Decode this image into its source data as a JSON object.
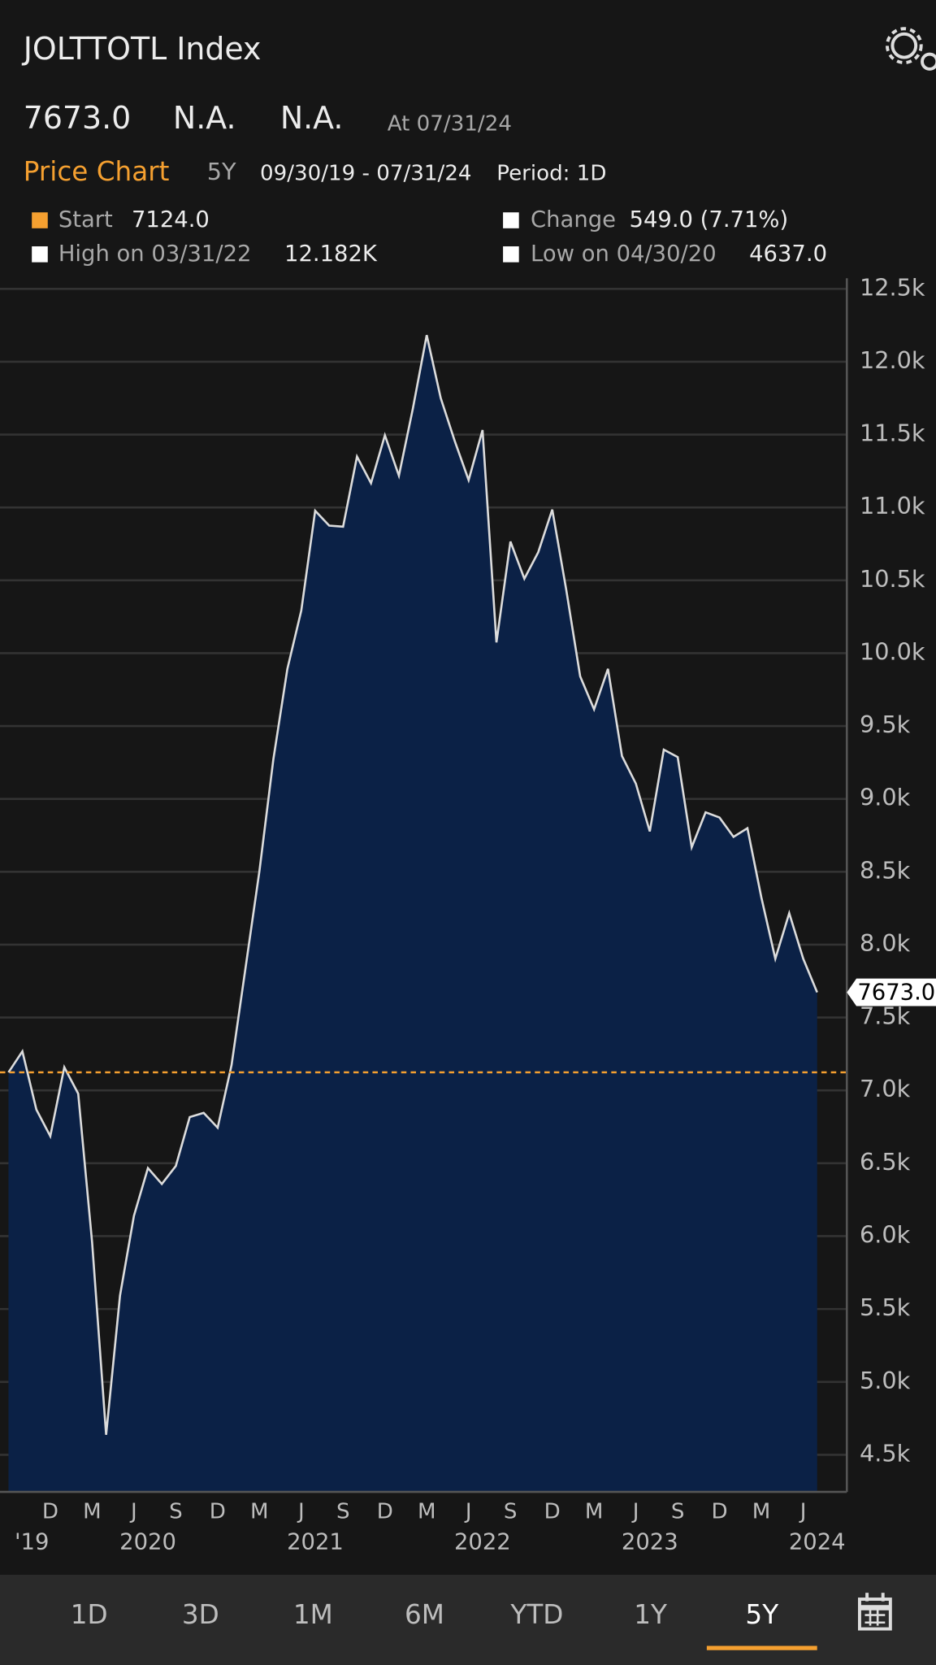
{
  "header": {
    "title": "JOLTTOTL Index",
    "last": "7673.0",
    "bid": "N.A.",
    "ask": "N.A.",
    "asof": "At 07/31/24",
    "section": "Price Chart",
    "range": "5Y",
    "dates": "09/30/19 - 07/31/24",
    "period": "Period: 1D",
    "stats": [
      {
        "label": "Start",
        "value": "7124.0"
      },
      {
        "label": "Change",
        "value": "549.0 (7.71%)"
      },
      {
        "label": "High on 03/31/22",
        "value": "12.182K"
      },
      {
        "label": "Low on 04/30/20",
        "value": "4637.0"
      }
    ]
  },
  "chart_data": {
    "type": "area",
    "color": "#dcdcdc",
    "fill": "#0b2146",
    "ref_color": "#f5a030",
    "grid": true,
    "x": [
      "2019-09",
      "2019-10",
      "2019-11",
      "2019-12",
      "2020-01",
      "2020-02",
      "2020-03",
      "2020-04",
      "2020-05",
      "2020-06",
      "2020-07",
      "2020-08",
      "2020-09",
      "2020-10",
      "2020-11",
      "2020-12",
      "2021-01",
      "2021-02",
      "2021-03",
      "2021-04",
      "2021-05",
      "2021-06",
      "2021-07",
      "2021-08",
      "2021-09",
      "2021-10",
      "2021-11",
      "2021-12",
      "2022-01",
      "2022-02",
      "2022-03",
      "2022-04",
      "2022-05",
      "2022-06",
      "2022-07",
      "2022-08",
      "2022-09",
      "2022-10",
      "2022-11",
      "2022-12",
      "2023-01",
      "2023-02",
      "2023-03",
      "2023-04",
      "2023-05",
      "2023-06",
      "2023-07",
      "2023-08",
      "2023-09",
      "2023-10",
      "2023-11",
      "2023-12",
      "2024-01",
      "2024-02",
      "2024-03",
      "2024-04",
      "2024-05",
      "2024-06",
      "2024-07"
    ],
    "values": [
      7124,
      7268,
      6868,
      6686,
      7159,
      6977,
      5957,
      4637,
      5593,
      6139,
      6467,
      6358,
      6482,
      6817,
      6846,
      6744,
      7174,
      7837,
      8507,
      9272,
      9892,
      10292,
      10977,
      10875,
      10868,
      11349,
      11167,
      11495,
      11218,
      11677,
      12182,
      11750,
      11458,
      11188,
      11531,
      10074,
      10766,
      10511,
      10693,
      10985,
      10438,
      9841,
      9615,
      9892,
      9294,
      9105,
      8777,
      9338,
      9287,
      8668,
      8908,
      8872,
      8740,
      8799,
      8325,
      7903,
      8216,
      7903,
      7673
    ],
    "ylim": [
      4245,
      12500
    ],
    "yticks": [
      {
        "value": 4500,
        "label": "4.5k"
      },
      {
        "value": 5000,
        "label": "5.0k"
      },
      {
        "value": 5500,
        "label": "5.5k"
      },
      {
        "value": 6000,
        "label": "6.0k"
      },
      {
        "value": 6500,
        "label": "6.5k"
      },
      {
        "value": 7000,
        "label": "7.0k"
      },
      {
        "value": 7500,
        "label": "7.5k"
      },
      {
        "value": 8000,
        "label": "8.0k"
      },
      {
        "value": 8500,
        "label": "8.5k"
      },
      {
        "value": 9000,
        "label": "9.0k"
      },
      {
        "value": 9500,
        "label": "9.5k"
      },
      {
        "value": 10000,
        "label": "10.0k"
      },
      {
        "value": 10500,
        "label": "10.5k"
      },
      {
        "value": 11000,
        "label": "11.0k"
      },
      {
        "value": 11500,
        "label": "11.5k"
      },
      {
        "value": 12000,
        "label": "12.0k"
      },
      {
        "value": 12500,
        "label": "12.5k"
      }
    ],
    "xticks": [
      {
        "value": "2019-12",
        "label": "D"
      },
      {
        "value": "2020-03",
        "label": "M"
      },
      {
        "value": "2020-06",
        "label": "J"
      },
      {
        "value": "2020-09",
        "label": "S"
      },
      {
        "value": "2020-12",
        "label": "D"
      },
      {
        "value": "2021-03",
        "label": "M"
      },
      {
        "value": "2021-06",
        "label": "J"
      },
      {
        "value": "2021-09",
        "label": "S"
      },
      {
        "value": "2021-12",
        "label": "D"
      },
      {
        "value": "2022-03",
        "label": "M"
      },
      {
        "value": "2022-06",
        "label": "J"
      },
      {
        "value": "2022-09",
        "label": "S"
      },
      {
        "value": "2022-12",
        "label": "D"
      },
      {
        "value": "2023-03",
        "label": "M"
      },
      {
        "value": "2023-06",
        "label": "J"
      },
      {
        "value": "2023-09",
        "label": "S"
      },
      {
        "value": "2023-12",
        "label": "D"
      },
      {
        "value": "2024-03",
        "label": "M"
      },
      {
        "value": "2024-06",
        "label": "J"
      }
    ],
    "xyears": [
      {
        "value": "2019",
        "label": "'19"
      },
      {
        "value": "2020",
        "label": "2020"
      },
      {
        "value": "2021",
        "label": "2021"
      },
      {
        "value": "2022",
        "label": "2022"
      },
      {
        "value": "2023",
        "label": "2023"
      },
      {
        "value": "2024",
        "label": "2024"
      }
    ]
  },
  "tabs": [
    "1D",
    "3D",
    "1M",
    "6M",
    "YTD",
    "1Y",
    "5Y"
  ],
  "active_tab": 6
}
